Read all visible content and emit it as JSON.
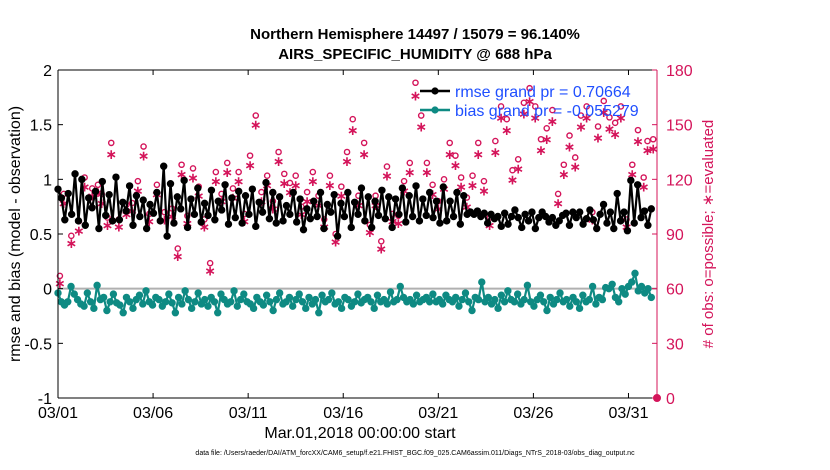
{
  "chart_data": {
    "type": "line",
    "title": [
      "Northern Hemisphere 14497 / 15079 = 96.140%",
      "AIRS_SPECIFIC_HUMIDITY @ 688 hPa"
    ],
    "xlabel": "Mar.01,2018 00:00:00 start",
    "ylabel": "rmse and bias (model - observation)",
    "y2label": "# of obs: o=possible; ∗=evaluated",
    "x_tick_labels": [
      "03/01",
      "03/06",
      "03/11",
      "03/16",
      "03/21",
      "03/26",
      "03/31"
    ],
    "x_tick_values": [
      0,
      5,
      10,
      15,
      20,
      25,
      30
    ],
    "xlim": [
      0,
      31.5
    ],
    "ylim": [
      -1,
      2
    ],
    "y_ticks": [
      "-1",
      "-0.5",
      "0",
      "0.5",
      "1",
      "1.5",
      "2"
    ],
    "y2lim": [
      0,
      180
    ],
    "y2_ticks": [
      "0",
      "30",
      "60",
      "90",
      "120",
      "150",
      "180"
    ],
    "footnote": "data file: /Users/raeder/DAI/ATM_forcXX/CAM6_setup/f.e21.FHIST_BGC.f09_025.CAM6assim.011/Diags_NTrS_2018-03/obs_diag_output.nc",
    "legend": [
      {
        "label": "rmse grand pr = 0.70664",
        "color": "#000000"
      },
      {
        "label": "bias grand pr = -0.055279",
        "color": "#0e8a83"
      }
    ],
    "colors": {
      "rmse": "#000000",
      "bias": "#0e8a83",
      "obs": "#d4145a",
      "zero": "#b0b0b0",
      "legend_text": "#1f4fff"
    },
    "series": [
      {
        "name": "rmse",
        "axis": "left",
        "values": [
          0.91,
          0.83,
          0.63,
          0.87,
          0.68,
          1.05,
          0.62,
          1.0,
          0.58,
          0.83,
          0.74,
          0.89,
          0.55,
          0.98,
          0.67,
          0.86,
          0.62,
          1.02,
          0.63,
          0.79,
          0.71,
          0.94,
          0.58,
          0.85,
          0.66,
          0.81,
          0.55,
          0.77,
          0.69,
          0.88,
          0.62,
          1.12,
          0.48,
          0.96,
          0.6,
          0.84,
          0.73,
          0.99,
          0.56,
          0.82,
          0.68,
          0.92,
          0.61,
          0.78,
          0.67,
          0.9,
          0.63,
          0.8,
          0.72,
          0.95,
          0.59,
          0.83,
          0.65,
          0.89,
          0.6,
          0.85,
          0.68,
          0.91,
          0.57,
          0.79,
          0.7,
          0.97,
          0.64,
          0.88,
          0.6,
          0.84,
          0.62,
          0.76,
          0.68,
          0.88,
          0.61,
          0.82,
          0.54,
          0.73,
          0.64,
          0.8,
          0.66,
          0.88,
          0.55,
          0.77,
          0.7,
          0.86,
          0.48,
          0.78,
          0.66,
          0.88,
          0.56,
          0.79,
          0.68,
          0.92,
          0.62,
          0.84,
          0.56,
          0.8,
          0.67,
          0.9,
          0.64,
          0.84,
          0.56,
          0.82,
          0.68,
          0.92,
          0.61,
          0.85,
          0.66,
          0.94,
          0.62,
          0.82,
          0.67,
          0.88,
          0.65,
          0.8,
          0.6,
          0.93,
          0.62,
          0.8,
          0.66,
          0.88,
          0.59,
          0.85,
          0.68,
          0.7,
          0.68,
          0.71,
          0.66,
          0.69,
          0.6,
          0.68,
          0.64,
          0.66,
          0.57,
          0.69,
          0.59,
          0.66,
          0.72,
          0.65,
          0.56,
          0.68,
          0.62,
          0.7,
          0.55,
          0.65,
          0.7,
          0.66,
          0.61,
          0.65,
          0.58,
          0.62,
          0.67,
          0.69,
          0.58,
          0.7,
          0.65,
          0.7,
          0.59,
          0.64,
          0.72,
          0.63,
          0.55,
          0.68,
          0.77,
          0.6,
          0.7,
          0.55,
          0.87,
          0.62,
          0.7,
          0.53,
          0.99,
          0.6,
          0.95,
          0.65,
          0.71,
          0.58,
          0.73
        ]
      },
      {
        "name": "bias",
        "axis": "left",
        "values": [
          -0.04,
          -0.12,
          -0.15,
          -0.12,
          0.02,
          -0.05,
          -0.1,
          -0.14,
          -0.16,
          -0.04,
          -0.12,
          -0.18,
          0.03,
          -0.1,
          -0.08,
          -0.2,
          -0.12,
          -0.05,
          -0.13,
          -0.15,
          -0.22,
          -0.08,
          -0.12,
          -0.18,
          -0.1,
          -0.06,
          -0.14,
          -0.02,
          -0.12,
          -0.15,
          -0.08,
          -0.1,
          -0.16,
          -0.12,
          -0.05,
          -0.13,
          -0.22,
          -0.08,
          -0.14,
          -0.02,
          -0.1,
          -0.18,
          -0.12,
          -0.04,
          -0.14,
          -0.1,
          -0.16,
          -0.08,
          -0.12,
          -0.22,
          -0.05,
          -0.1,
          -0.14,
          -0.12,
          -0.02,
          -0.16,
          -0.1,
          -0.05,
          -0.12,
          -0.14,
          -0.18,
          -0.08,
          -0.12,
          -0.15,
          -0.06,
          -0.12,
          -0.2,
          -0.1,
          -0.04,
          -0.14,
          -0.12,
          -0.08,
          -0.16,
          -0.1,
          -0.05,
          -0.12,
          -0.18,
          -0.08,
          -0.14,
          -0.1,
          -0.22,
          -0.06,
          -0.12,
          -0.1,
          -0.04,
          -0.14,
          -0.12,
          -0.18,
          -0.08,
          -0.1,
          -0.16,
          -0.12,
          -0.05,
          -0.13,
          -0.1,
          -0.08,
          -0.12,
          -0.18,
          -0.06,
          -0.12,
          -0.1,
          -0.14,
          -0.03,
          -0.12,
          -0.1,
          0.02,
          -0.08,
          -0.12,
          -0.1,
          -0.14,
          -0.06,
          -0.12,
          -0.1,
          -0.08,
          -0.12,
          -0.05,
          -0.12,
          -0.1,
          -0.14,
          -0.06,
          -0.1,
          -0.12,
          -0.08,
          -0.16,
          -0.1,
          -0.04,
          -0.12,
          -0.2,
          -0.08,
          -0.1,
          0.06,
          -0.12,
          -0.08,
          -0.14,
          -0.1,
          -0.18,
          -0.06,
          -0.12,
          -0.02,
          -0.1,
          -0.12,
          -0.05,
          -0.14,
          -0.1,
          0.03,
          -0.12,
          -0.16,
          -0.1,
          -0.06,
          -0.12,
          -0.2,
          -0.08,
          -0.14,
          -0.1,
          -0.04,
          -0.12,
          -0.1,
          -0.16,
          -0.08,
          -0.12,
          -0.18,
          -0.06,
          -0.12,
          -0.1,
          0.02,
          -0.14,
          -0.08,
          -0.1,
          0.01,
          0.0,
          0.04,
          -0.08,
          -0.12,
          0.0,
          -0.05,
          0.02,
          0.06,
          0.14,
          -0.02,
          0.02,
          -0.04,
          0.0,
          -0.08
        ]
      },
      {
        "name": "obs_possible",
        "axis": "right",
        "marker": "o",
        "points": [
          [
            0.1,
            67
          ],
          [
            0.3,
            112
          ],
          [
            0.7,
            89
          ],
          [
            1.1,
            97
          ],
          [
            1.4,
            121
          ],
          [
            1.8,
            115
          ],
          [
            2.1,
            117
          ],
          [
            2.3,
            112
          ],
          [
            2.6,
            99
          ],
          [
            2.8,
            140
          ],
          [
            3.2,
            98
          ],
          [
            3.6,
            106
          ],
          [
            3.9,
            107
          ],
          [
            4.2,
            119
          ],
          [
            4.5,
            138
          ],
          [
            4.8,
            101
          ],
          [
            5.2,
            117
          ],
          [
            5.6,
            102
          ],
          [
            6.0,
            104
          ],
          [
            6.3,
            82
          ],
          [
            6.5,
            128
          ],
          [
            6.8,
            100
          ],
          [
            7.1,
            126
          ],
          [
            7.4,
            116
          ],
          [
            7.7,
            98
          ],
          [
            8.0,
            74
          ],
          [
            8.3,
            124
          ],
          [
            8.6,
            112
          ],
          [
            8.9,
            129
          ],
          [
            9.2,
            115
          ],
          [
            9.5,
            124
          ],
          [
            9.8,
            101
          ],
          [
            10.1,
            133
          ],
          [
            10.4,
            155
          ],
          [
            10.7,
            113
          ],
          [
            11.0,
            122
          ],
          [
            11.3,
            108
          ],
          [
            11.6,
            135
          ],
          [
            11.9,
            123
          ],
          [
            12.2,
            118
          ],
          [
            12.5,
            122
          ],
          [
            12.8,
            105
          ],
          [
            13.1,
            113
          ],
          [
            13.4,
            124
          ],
          [
            13.7,
            111
          ],
          [
            14.0,
            98
          ],
          [
            14.3,
            122
          ],
          [
            14.6,
            90
          ],
          [
            14.9,
            116
          ],
          [
            15.2,
            135
          ],
          [
            15.5,
            153
          ],
          [
            15.8,
            111
          ],
          [
            16.1,
            140
          ],
          [
            16.4,
            95
          ],
          [
            16.7,
            111
          ],
          [
            17.0,
            86
          ],
          [
            17.3,
            127
          ],
          [
            17.6,
            101
          ],
          [
            17.9,
            100
          ],
          [
            18.2,
            119
          ],
          [
            18.5,
            129
          ],
          [
            18.8,
            173
          ],
          [
            19.1,
            155
          ],
          [
            19.4,
            129
          ],
          [
            19.7,
            117
          ],
          [
            20.0,
            108
          ],
          [
            20.3,
            120
          ],
          [
            20.6,
            140
          ],
          [
            20.9,
            133
          ],
          [
            21.2,
            121
          ],
          [
            21.5,
            110
          ],
          [
            21.8,
            122
          ],
          [
            22.1,
            140
          ],
          [
            22.4,
            119
          ],
          [
            22.7,
            99
          ],
          [
            23.0,
            141
          ],
          [
            23.3,
            160
          ],
          [
            23.6,
            153
          ],
          [
            23.9,
            125
          ],
          [
            24.2,
            131
          ],
          [
            24.5,
            162
          ],
          [
            24.8,
            170
          ],
          [
            25.1,
            160
          ],
          [
            25.4,
            142
          ],
          [
            25.7,
            148
          ],
          [
            26.0,
            158
          ],
          [
            26.3,
            112
          ],
          [
            26.6,
            128
          ],
          [
            26.9,
            144
          ],
          [
            27.2,
            132
          ],
          [
            27.5,
            155
          ],
          [
            27.8,
            160
          ],
          [
            28.1,
            102
          ],
          [
            28.4,
            149
          ],
          [
            28.7,
            163
          ],
          [
            29.0,
            154
          ],
          [
            29.3,
            151
          ],
          [
            29.6,
            160
          ],
          [
            29.9,
            98
          ],
          [
            30.2,
            128
          ],
          [
            30.5,
            147
          ],
          [
            30.8,
            121
          ],
          [
            31.0,
            141
          ],
          [
            31.3,
            142
          ]
        ]
      },
      {
        "name": "obs_evaluated",
        "axis": "right",
        "marker": "*",
        "points": [
          [
            0.1,
            63
          ],
          [
            0.3,
            107
          ],
          [
            0.7,
            85
          ],
          [
            1.1,
            92
          ],
          [
            1.4,
            116
          ],
          [
            1.8,
            111
          ],
          [
            2.1,
            113
          ],
          [
            2.3,
            107
          ],
          [
            2.6,
            95
          ],
          [
            2.8,
            134
          ],
          [
            3.2,
            94
          ],
          [
            3.6,
            101
          ],
          [
            3.9,
            103
          ],
          [
            4.2,
            114
          ],
          [
            4.5,
            133
          ],
          [
            4.8,
            97
          ],
          [
            5.2,
            112
          ],
          [
            5.6,
            98
          ],
          [
            6.0,
            100
          ],
          [
            6.3,
            78
          ],
          [
            6.5,
            123
          ],
          [
            6.8,
            96
          ],
          [
            7.1,
            121
          ],
          [
            7.4,
            111
          ],
          [
            7.7,
            94
          ],
          [
            8.0,
            70
          ],
          [
            8.3,
            119
          ],
          [
            8.6,
            108
          ],
          [
            8.9,
            124
          ],
          [
            9.2,
            110
          ],
          [
            9.5,
            119
          ],
          [
            9.8,
            97
          ],
          [
            10.1,
            128
          ],
          [
            10.4,
            150
          ],
          [
            10.7,
            108
          ],
          [
            11.0,
            117
          ],
          [
            11.3,
            104
          ],
          [
            11.6,
            130
          ],
          [
            11.9,
            118
          ],
          [
            12.2,
            113
          ],
          [
            12.5,
            117
          ],
          [
            12.8,
            101
          ],
          [
            13.1,
            108
          ],
          [
            13.4,
            119
          ],
          [
            13.7,
            106
          ],
          [
            14.0,
            94
          ],
          [
            14.3,
            117
          ],
          [
            14.6,
            86
          ],
          [
            14.9,
            111
          ],
          [
            15.2,
            130
          ],
          [
            15.5,
            147
          ],
          [
            15.8,
            106
          ],
          [
            16.1,
            134
          ],
          [
            16.4,
            91
          ],
          [
            16.7,
            106
          ],
          [
            17.0,
            82
          ],
          [
            17.3,
            122
          ],
          [
            17.6,
            97
          ],
          [
            17.9,
            96
          ],
          [
            18.2,
            114
          ],
          [
            18.5,
            124
          ],
          [
            18.8,
            166
          ],
          [
            19.1,
            149
          ],
          [
            19.4,
            124
          ],
          [
            19.7,
            112
          ],
          [
            20.0,
            104
          ],
          [
            20.3,
            115
          ],
          [
            20.6,
            134
          ],
          [
            20.9,
            128
          ],
          [
            21.2,
            116
          ],
          [
            21.5,
            105
          ],
          [
            21.8,
            117
          ],
          [
            22.1,
            134
          ],
          [
            22.4,
            114
          ],
          [
            22.7,
            95
          ],
          [
            23.0,
            135
          ],
          [
            23.3,
            154
          ],
          [
            23.6,
            147
          ],
          [
            23.9,
            120
          ],
          [
            24.2,
            126
          ],
          [
            24.5,
            156
          ],
          [
            24.8,
            163
          ],
          [
            25.1,
            154
          ],
          [
            25.4,
            136
          ],
          [
            25.7,
            142
          ],
          [
            26.0,
            152
          ],
          [
            26.3,
            107
          ],
          [
            26.6,
            123
          ],
          [
            26.9,
            138
          ],
          [
            27.2,
            127
          ],
          [
            27.5,
            149
          ],
          [
            27.8,
            154
          ],
          [
            28.1,
            98
          ],
          [
            28.4,
            143
          ],
          [
            28.7,
            157
          ],
          [
            29.0,
            148
          ],
          [
            29.3,
            145
          ],
          [
            29.6,
            154
          ],
          [
            29.9,
            94
          ],
          [
            30.2,
            123
          ],
          [
            30.5,
            141
          ],
          [
            30.8,
            116
          ],
          [
            31.0,
            136
          ],
          [
            31.3,
            137
          ]
        ]
      }
    ]
  }
}
